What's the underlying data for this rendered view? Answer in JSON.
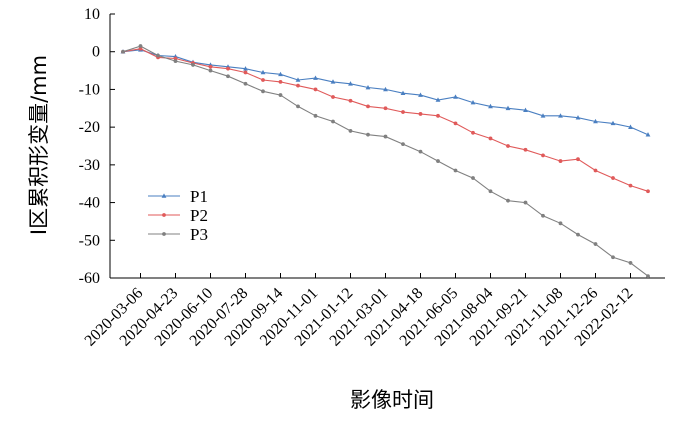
{
  "chart_data": {
    "type": "line",
    "xlabel": "影像时间",
    "ylabel": "I区累积形变量/mm",
    "ylim": [
      -60,
      10
    ],
    "yticks": [
      10,
      0,
      -10,
      -20,
      -30,
      -40,
      -50,
      -60
    ],
    "x_tick_labels": [
      "2020-03-06",
      "2020-04-23",
      "2020-06-10",
      "2020-07-28",
      "2020-09-14",
      "2020-11-01",
      "2021-01-12",
      "2021-03-01",
      "2021-04-18",
      "2021-06-05",
      "2021-08-04",
      "2021-09-21",
      "2021-11-08",
      "2021-12-26",
      "2022-02-12"
    ],
    "x_tick_index": [
      1,
      3,
      5,
      7,
      9,
      11,
      13,
      15,
      17,
      19,
      21,
      23,
      25,
      27,
      29
    ],
    "point_count": 31,
    "legend_position": "left",
    "grid": false,
    "series": [
      {
        "name": "P1",
        "color": "#4a7fc1",
        "marker": "triangle",
        "values": [
          0,
          0.5,
          -1,
          -1.3,
          -2.8,
          -3.5,
          -4,
          -4.5,
          -5.5,
          -6,
          -7.5,
          -7,
          -8,
          -8.5,
          -9.5,
          -10,
          -11,
          -11.5,
          -12.8,
          -12,
          -13.5,
          -14.5,
          -15,
          -15.5,
          -17,
          -17,
          -17.5,
          -18.5,
          -19,
          -20,
          -22
        ]
      },
      {
        "name": "P2",
        "color": "#e05a5a",
        "marker": "circle",
        "values": [
          0,
          0.8,
          -1.5,
          -1.8,
          -3,
          -4,
          -4.5,
          -5.5,
          -7.5,
          -8,
          -9,
          -10,
          -12,
          -13,
          -14.5,
          -15,
          -16,
          -16.5,
          -17,
          -19,
          -21.5,
          -23,
          -25,
          -26,
          -27.5,
          -29,
          -28.5,
          -31.5,
          -33.5,
          -35.5,
          -37
        ]
      },
      {
        "name": "P3",
        "color": "#808080",
        "marker": "circle",
        "values": [
          0,
          1.5,
          -1,
          -2.5,
          -3.5,
          -5,
          -6.5,
          -8.5,
          -10.5,
          -11.5,
          -14.5,
          -17,
          -18.5,
          -21,
          -22,
          -22.5,
          -24.5,
          -26.5,
          -29,
          -31.5,
          -33.5,
          -37,
          -39.5,
          -40,
          -43.5,
          -45.5,
          -48.5,
          -51,
          -54.5,
          -56,
          -59.5
        ]
      }
    ]
  }
}
